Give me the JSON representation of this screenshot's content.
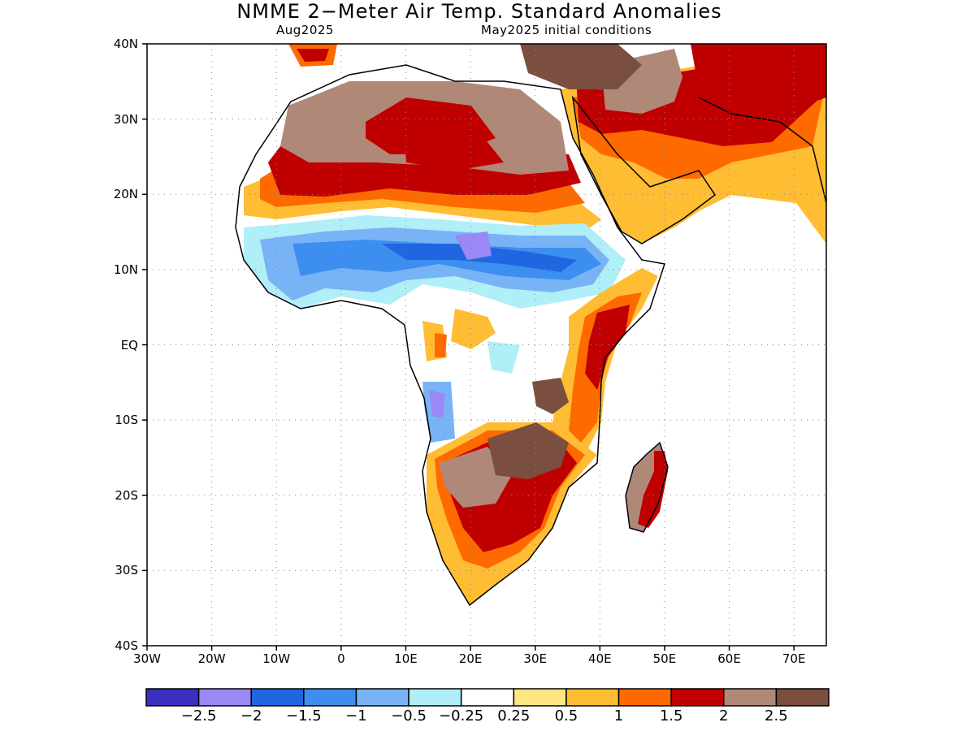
{
  "title": "NMME 2−Meter Air Temp. Standard Anomalies",
  "subtitle_left": "Aug2025",
  "subtitle_right": "May2025 initial conditions",
  "map": {
    "lon_range": [
      -30,
      75
    ],
    "lat_range": [
      -40,
      40
    ],
    "y_ticks": [
      "40N",
      "30N",
      "20N",
      "10N",
      "EQ",
      "10S",
      "20S",
      "30S",
      "40S"
    ],
    "x_ticks": [
      "30W",
      "20W",
      "10W",
      "0",
      "10E",
      "20E",
      "30E",
      "40E",
      "50E",
      "60E",
      "70E"
    ],
    "gridlines": "dotted"
  },
  "legend": {
    "colors": [
      "#3b2fbf",
      "#9b87f5",
      "#1f66e0",
      "#3c8ff0",
      "#78b4f5",
      "#b0eef8",
      "#ffffff",
      "#ffe680",
      "#ffbd33",
      "#ff6a00",
      "#c00000",
      "#b08878",
      "#7a4f40"
    ],
    "labels": [
      "−2.5",
      "−2",
      "−1.5",
      "−1",
      "−0.5",
      "−0.25",
      "0.25",
      "0.5",
      "1",
      "1.5",
      "2",
      "2.5"
    ]
  },
  "chart_data": {
    "type": "heatmap",
    "variable": "2-meter air temperature standard anomaly",
    "valid_month": "Aug2025",
    "initial_conditions": "May2025",
    "bins": [
      -2.5,
      -2,
      -1.5,
      -1,
      -0.5,
      -0.25,
      0.25,
      0.5,
      1,
      1.5,
      2,
      2.5
    ]
  }
}
